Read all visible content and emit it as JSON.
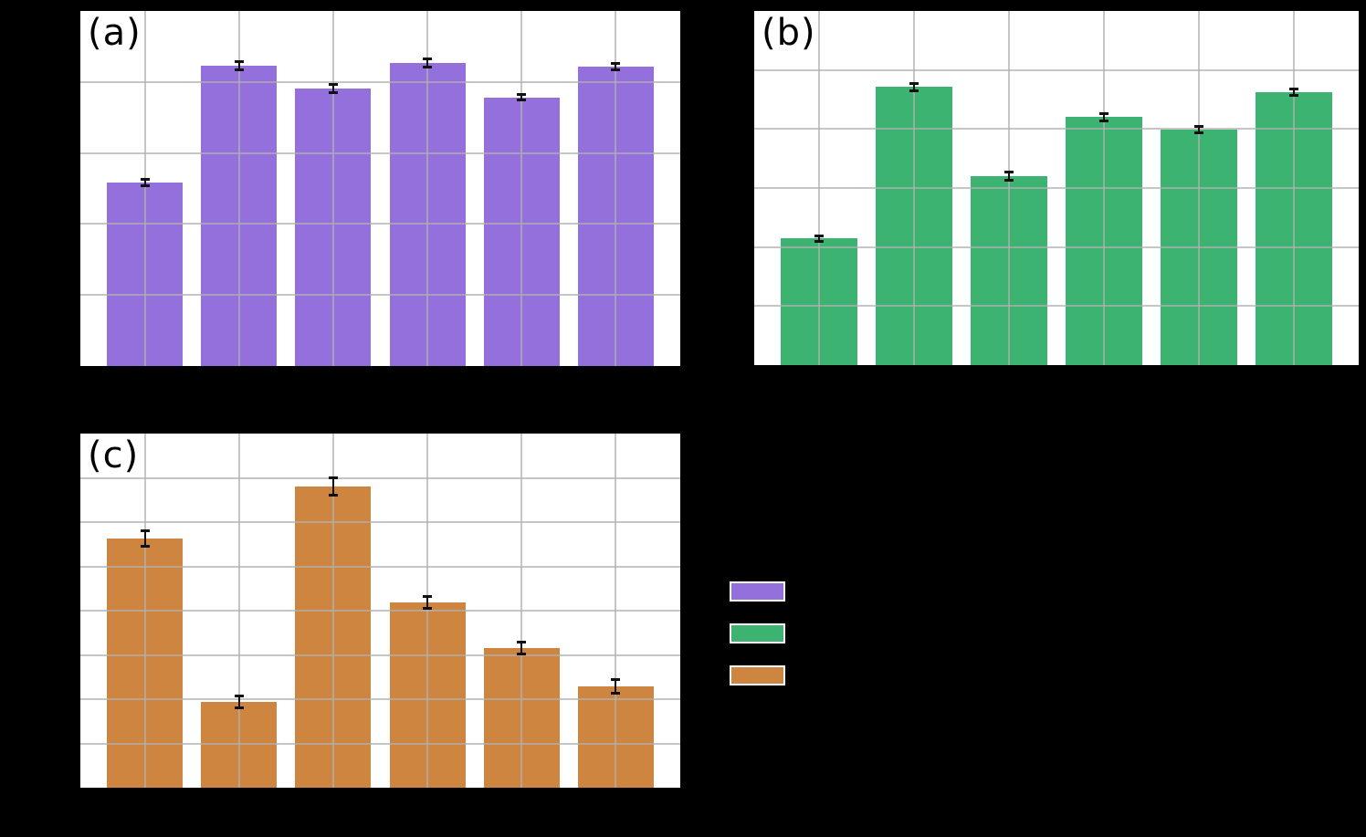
{
  "figure": {
    "background_color": "#000000",
    "plot_background_color": "#ffffff",
    "grid_color": "#b0b0b0",
    "error_bar_color": "#111111",
    "visibility_note": "Only panel labels, bars, gridlines, error bars and legend color swatches are visible; axis tick labels, axis titles and legend text are not visible against the black background."
  },
  "chart_data": [
    {
      "id": "a",
      "panel_label": "(a)",
      "type": "bar",
      "bar_color": "#9370DB",
      "categories": [
        "",
        "",
        "",
        "",
        "",
        ""
      ],
      "values": [
        0.517,
        0.846,
        0.781,
        0.853,
        0.757,
        0.842
      ],
      "errors": [
        0.01,
        0.011,
        0.012,
        0.012,
        0.008,
        0.009
      ],
      "ylim": [
        0,
        1
      ],
      "y_gridline_divisions": 5,
      "grid": true,
      "x_gridlines_at_bar_centers": true,
      "tick_labels_visible": false,
      "error_bar_caps": true
    },
    {
      "id": "b",
      "panel_label": "(b)",
      "type": "bar",
      "bar_color": "#3CB371",
      "categories": [
        "",
        "",
        "",
        "",
        "",
        ""
      ],
      "values": [
        0.357,
        0.785,
        0.533,
        0.7,
        0.665,
        0.77
      ],
      "errors": [
        0.009,
        0.01,
        0.012,
        0.011,
        0.01,
        0.009
      ],
      "ylim": [
        0,
        1
      ],
      "y_gridline_divisions": 6,
      "grid": true,
      "x_gridlines_at_bar_centers": true,
      "tick_labels_visible": false,
      "error_bar_caps": true
    },
    {
      "id": "c",
      "panel_label": "(c)",
      "type": "bar",
      "bar_color": "#CD853F",
      "categories": [
        "",
        "",
        "",
        "",
        "",
        ""
      ],
      "values": [
        0.704,
        0.242,
        0.851,
        0.523,
        0.394,
        0.286
      ],
      "errors": [
        0.021,
        0.016,
        0.025,
        0.017,
        0.017,
        0.019
      ],
      "ylim": [
        0,
        1
      ],
      "y_gridline_divisions": 8,
      "grid": true,
      "x_gridlines_at_bar_centers": true,
      "tick_labels_visible": false,
      "error_bar_caps": true
    }
  ],
  "legend": {
    "position": "right of panel (c), below panel (b)",
    "labels_visible": false,
    "entries": [
      {
        "color": "#9370DB",
        "label": ""
      },
      {
        "color": "#3CB371",
        "label": ""
      },
      {
        "color": "#CD853F",
        "label": ""
      }
    ]
  }
}
